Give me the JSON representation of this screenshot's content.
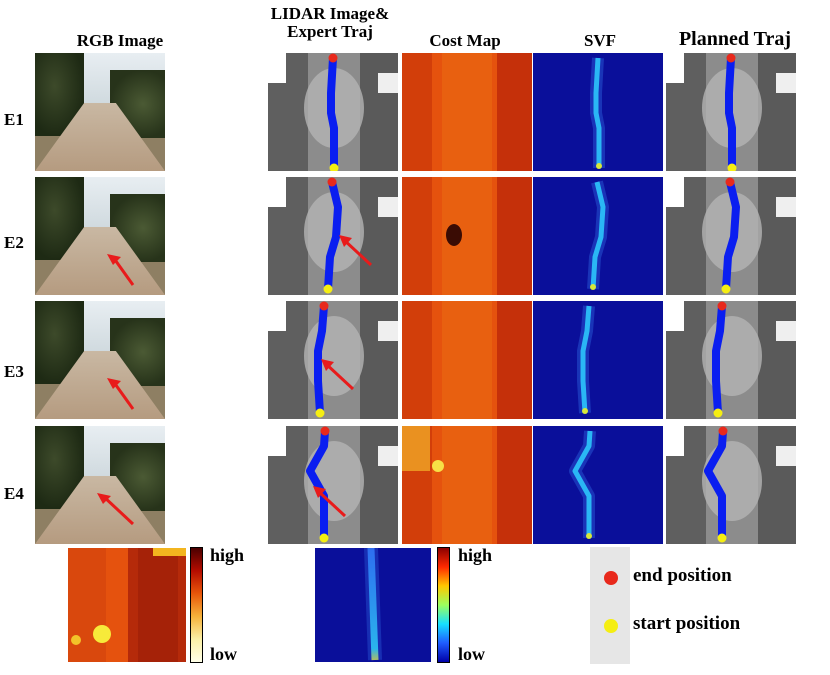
{
  "headers": {
    "rgb": "RGB Image",
    "lidar_line1": "LIDAR Image&",
    "lidar_line2": "Expert Traj",
    "cost": "Cost Map",
    "svf": "SVF",
    "planned": "Planned Traj"
  },
  "rows": [
    "E1",
    "E2",
    "E3",
    "E4"
  ],
  "colorbar_cost": {
    "high": "high",
    "low": "low"
  },
  "colorbar_svf": {
    "high": "high",
    "low": "low"
  },
  "legend": {
    "end": {
      "label": "end position",
      "color": "#e8291c"
    },
    "start": {
      "label": "start position",
      "color": "#f5ee12"
    }
  },
  "colors": {
    "trajectory": "#0a1ef0",
    "arrow": "#e81b1b",
    "svf_bg": "#0a0f9a"
  }
}
